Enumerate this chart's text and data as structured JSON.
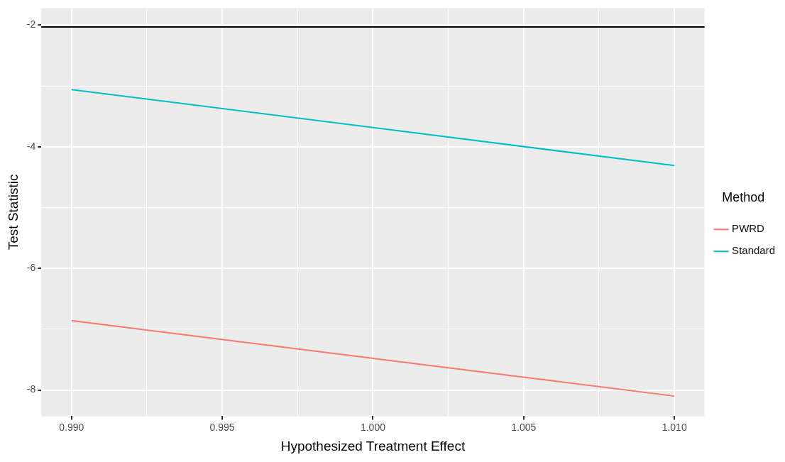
{
  "chart_data": {
    "type": "line",
    "xlabel": "Hypothesized Treatment Effect",
    "ylabel": "Test Statistic",
    "legend_title": "Method",
    "x": [
      0.99,
      1.01
    ],
    "series": [
      {
        "name": "PWRD",
        "color": "#f8766d",
        "values": [
          -6.86,
          -8.1
        ]
      },
      {
        "name": "Standard",
        "color": "#00bfc4",
        "values": [
          -3.06,
          -4.31
        ]
      }
    ],
    "xlim": [
      0.989,
      1.011
    ],
    "xticks": [
      {
        "value": 0.99,
        "label": "0.990"
      },
      {
        "value": 0.9925,
        "label": null
      },
      {
        "value": 0.995,
        "label": "0.995"
      },
      {
        "value": 0.9975,
        "label": null
      },
      {
        "value": 1.0,
        "label": "1.000"
      },
      {
        "value": 1.0025,
        "label": null
      },
      {
        "value": 1.005,
        "label": "1.005"
      },
      {
        "value": 1.0075,
        "label": null
      },
      {
        "value": 1.01,
        "label": "1.010"
      }
    ],
    "ylim": [
      -8.43,
      -1.72
    ],
    "yticks": [
      -8,
      {
        "value": -7,
        "label": null
      },
      -6,
      {
        "value": -5,
        "label": null
      },
      -4,
      {
        "value": -3,
        "label": null
      },
      -2
    ],
    "ref_lines": [
      {
        "axis": "y",
        "value": -2.03,
        "color": "#000000"
      }
    ],
    "grid": true,
    "legend": "right",
    "marker": "none",
    "line_style": "solid"
  }
}
